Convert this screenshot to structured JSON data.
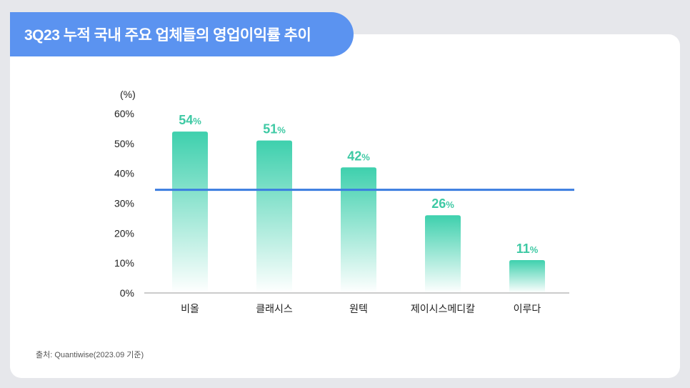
{
  "title": "3Q23 누적 국내 주요 업체들의 영업이익률 추이",
  "source": "출처: Quantiwise(2023.09 기준)",
  "colors": {
    "bar_top": "#3ed0ad",
    "bar_bottom": "#ffffff",
    "reference_line": "#3b7de0",
    "data_label": "#3ec9a4",
    "title_tab": "#5b93f0"
  },
  "chart_data": {
    "type": "bar",
    "ylabel": "(%)",
    "ylim": [
      0,
      60
    ],
    "yticks": [
      0,
      10,
      20,
      30,
      40,
      50,
      60
    ],
    "ytick_labels": [
      "0%",
      "10%",
      "20%",
      "30%",
      "40%",
      "50%",
      "60%"
    ],
    "categories": [
      "비올",
      "클래시스",
      "원텍",
      "제이시스메디칼",
      "이루다"
    ],
    "values": [
      54,
      51,
      42,
      26,
      11
    ],
    "value_labels": [
      "54%",
      "51%",
      "42%",
      "26%",
      "11%"
    ],
    "reference_line": 34.5,
    "grid": false
  }
}
